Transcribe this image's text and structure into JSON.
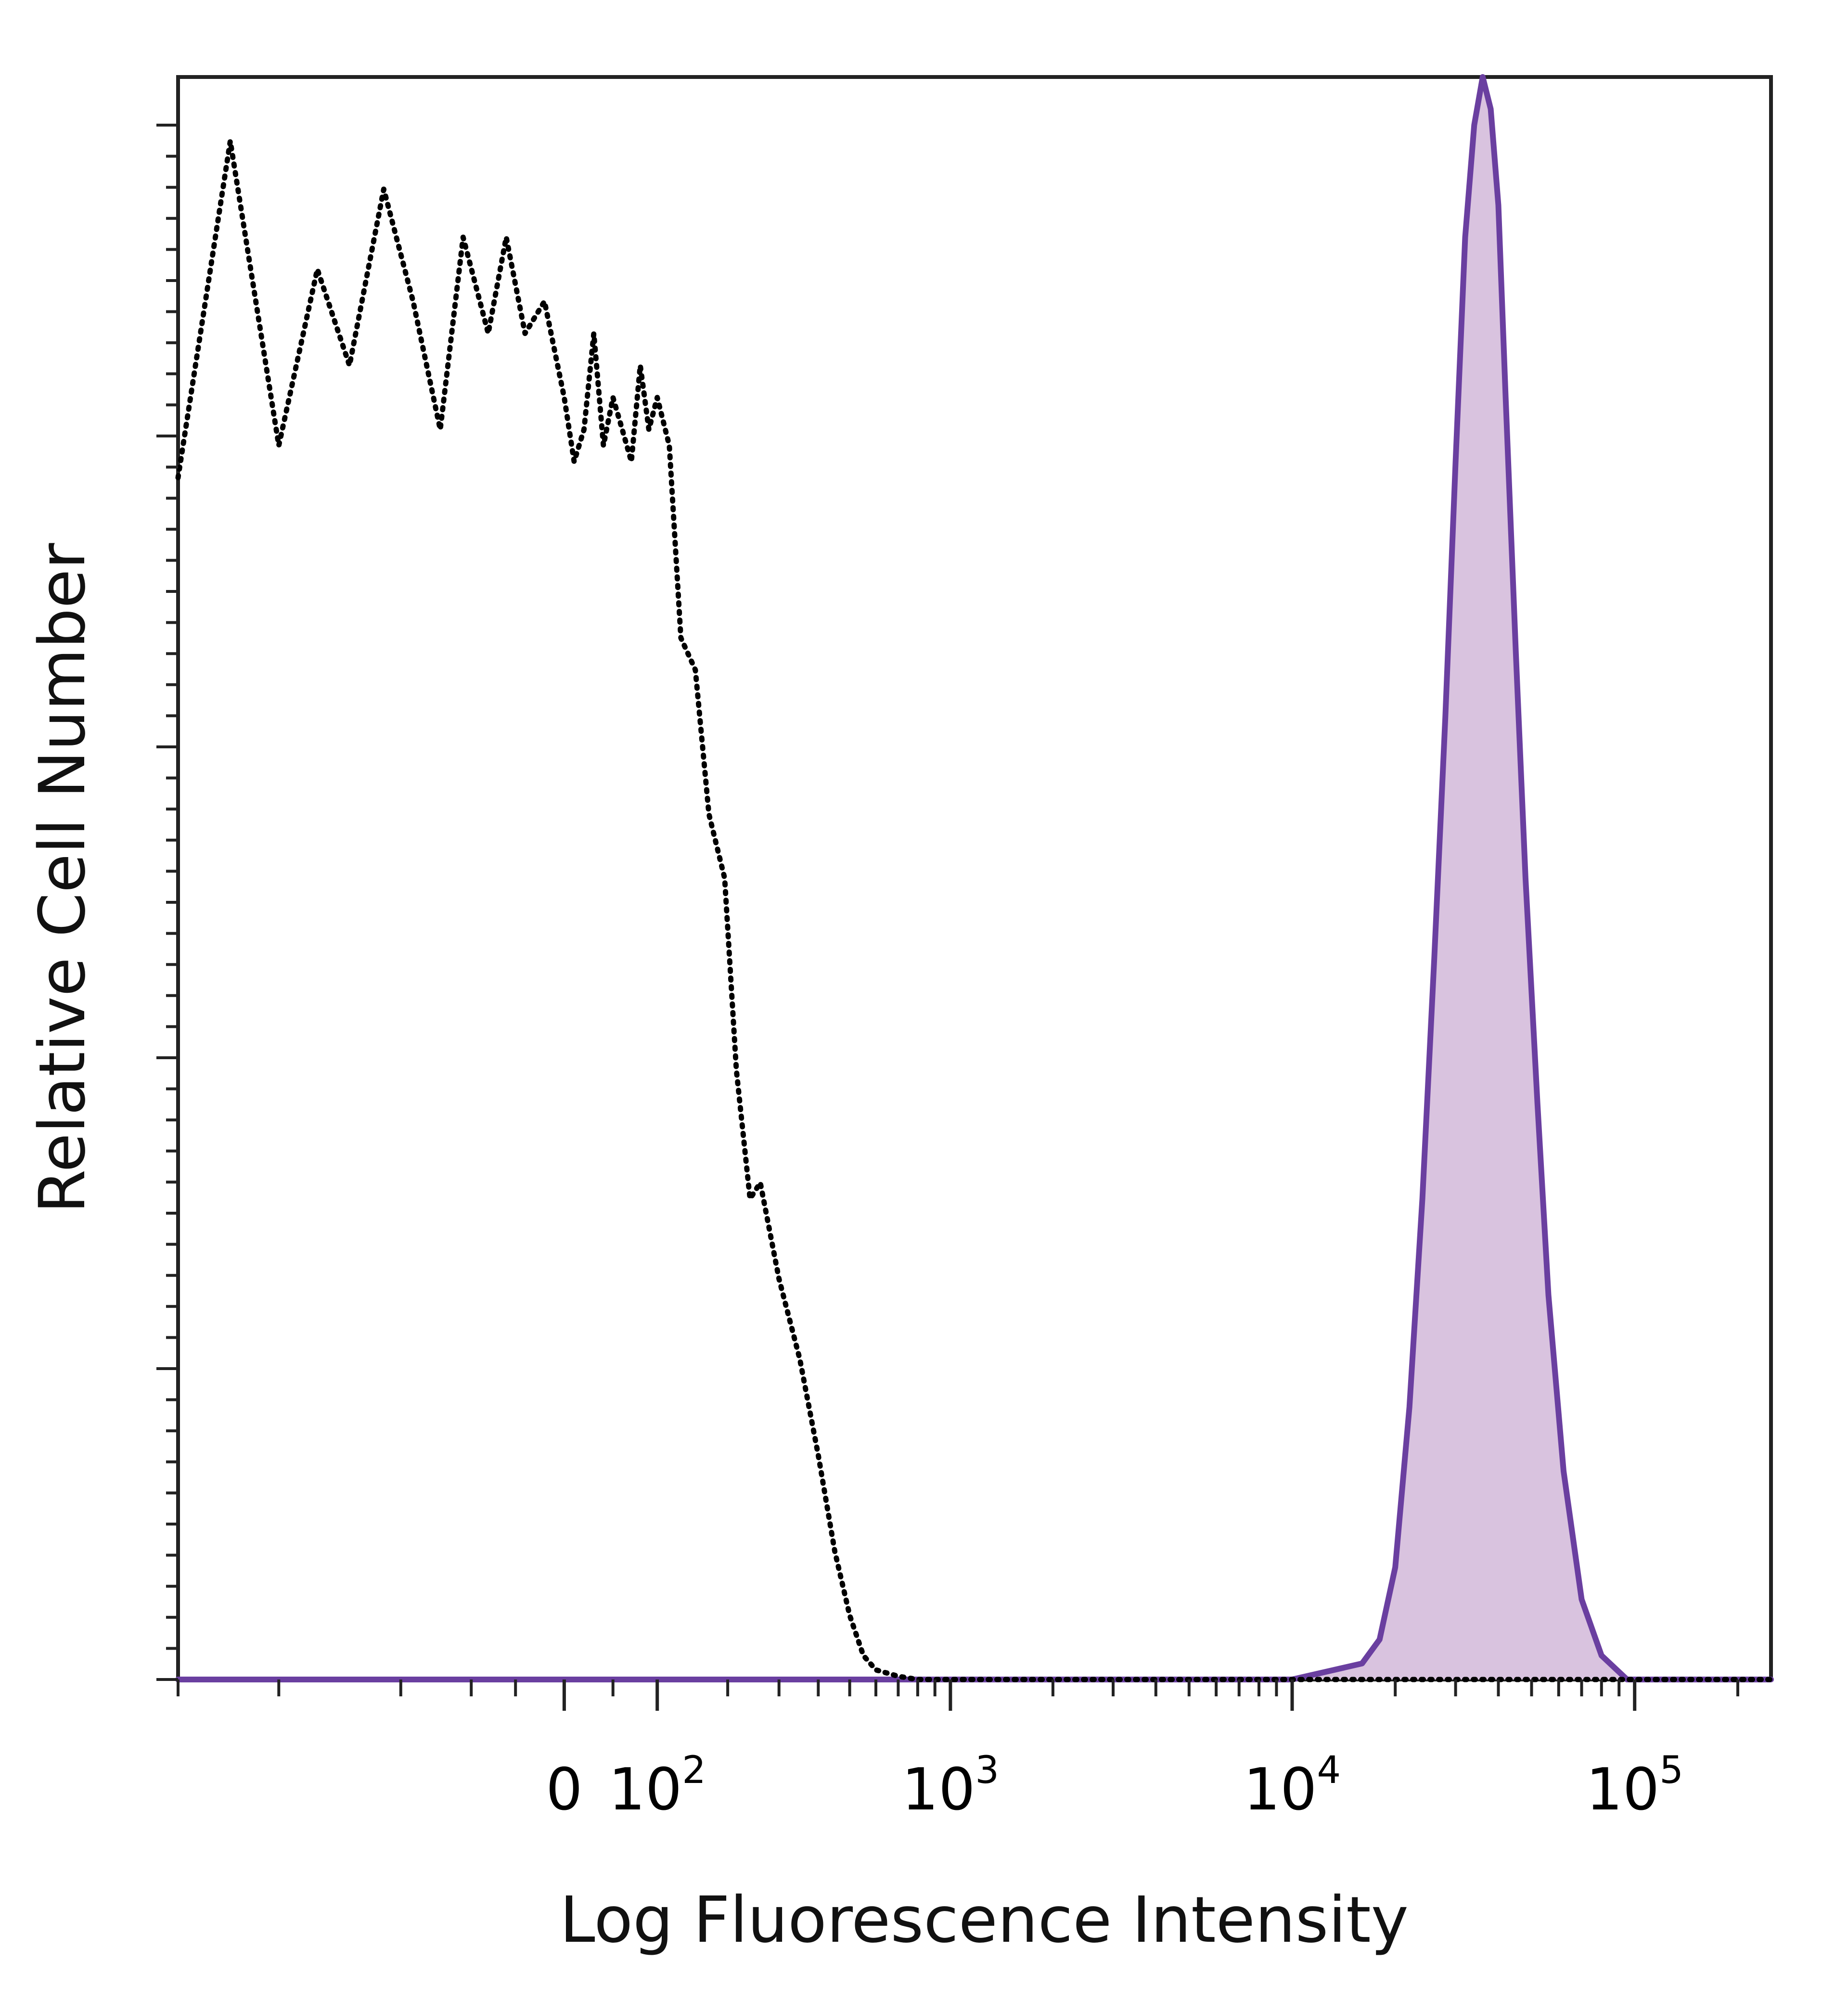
{
  "chart_data": {
    "type": "area",
    "title": "",
    "xlabel": "Log Fluorescence Intensity",
    "ylabel": "Relative Cell Number",
    "xscale": "biexponential",
    "xlim": [
      -1000,
      250000
    ],
    "ylim": [
      0,
      100
    ],
    "grid": false,
    "legend": "none",
    "x_ticks": [
      {
        "value": 0,
        "base": "0",
        "exp": ""
      },
      {
        "value": 100,
        "base": "10",
        "exp": "2"
      },
      {
        "value": 1000,
        "base": "10",
        "exp": "3"
      },
      {
        "value": 10000,
        "base": "10",
        "exp": "4"
      },
      {
        "value": 100000,
        "base": "10",
        "exp": "5"
      }
    ],
    "series": [
      {
        "style": "dotted",
        "color": "#000000",
        "fill": "none",
        "x": [
          -1000,
          -700,
          -500,
          -380,
          -300,
          -230,
          -180,
          -140,
          -110,
          -80,
          -60,
          -40,
          -20,
          0,
          10,
          20,
          30,
          40,
          50,
          60,
          70,
          80,
          90,
          100,
          115,
          130,
          150,
          170,
          195,
          215,
          240,
          260,
          300,
          350,
          400,
          450,
          500,
          550,
          600,
          700,
          800,
          1000,
          2000,
          5000,
          10000,
          20000,
          100000,
          250000
        ],
        "y": [
          75,
          96,
          77,
          88,
          82,
          93,
          86,
          78,
          90,
          84,
          90,
          84,
          86,
          80,
          76,
          78,
          84,
          77,
          80,
          78,
          76,
          82,
          78,
          80,
          77,
          65,
          63,
          54,
          50,
          38,
          30,
          31,
          25,
          20,
          14,
          8,
          4,
          1.5,
          0.6,
          0.2,
          0,
          0,
          0,
          0,
          0,
          0,
          0,
          0
        ]
      },
      {
        "style": "solid",
        "color": "#6A3FA0",
        "fill": "#D9C3DF",
        "x": [
          -1000,
          10000,
          16000,
          18000,
          20000,
          22000,
          24000,
          26000,
          28000,
          30000,
          32000,
          34000,
          36000,
          38000,
          40000,
          42000,
          45000,
          48000,
          52000,
          56000,
          62000,
          70000,
          80000,
          95000,
          250000
        ],
        "y": [
          0,
          0,
          1,
          2.5,
          7,
          17,
          30,
          45,
          60,
          76,
          90,
          97,
          100,
          98,
          92,
          80,
          64,
          50,
          36,
          24,
          13,
          5,
          1.5,
          0,
          0
        ]
      }
    ]
  }
}
